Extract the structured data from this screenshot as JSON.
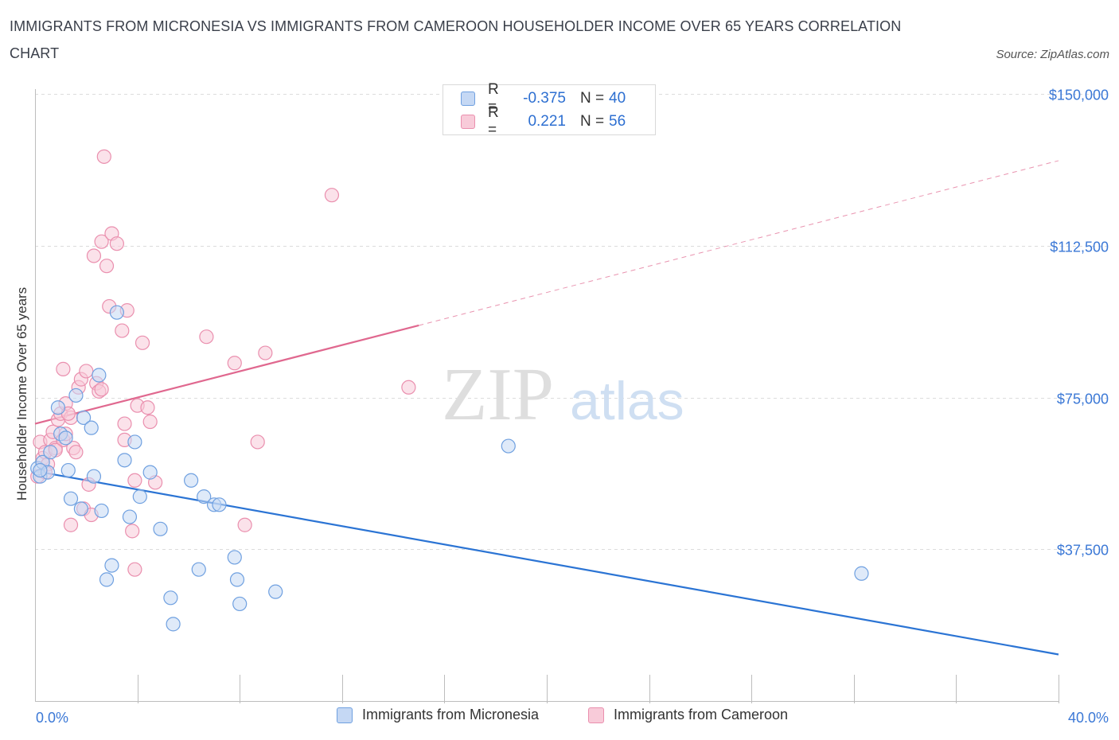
{
  "header": {
    "title": "IMMIGRANTS FROM MICRONESIA VS IMMIGRANTS FROM CAMEROON HOUSEHOLDER INCOME OVER 65 YEARS CORRELATION CHART",
    "source": "Source: ZipAtlas.com"
  },
  "watermark": {
    "zip": "ZIP",
    "atlas": "atlas"
  },
  "legend": {
    "rows": [
      {
        "r_label": "R =",
        "r_value": "-0.375",
        "n_label": "N =",
        "n_value": "40"
      },
      {
        "r_label": "R =",
        "r_value": "0.221",
        "n_label": "N =",
        "n_value": "56"
      }
    ]
  },
  "bottom_legend": [
    {
      "label": "Immigrants from Micronesia"
    },
    {
      "label": "Immigrants from Cameroon"
    }
  ],
  "colors": {
    "micronesia_fill": "#c5d8f4",
    "micronesia_stroke": "#6fa0e0",
    "micronesia_line": "#2b74d4",
    "cameroon_fill": "#f8cbd9",
    "cameroon_stroke": "#ea8fae",
    "cameroon_line": "#e0688f",
    "tick_label": "#3b78d6",
    "grid": "#dcdcdc"
  },
  "chart_data": {
    "type": "scatter",
    "title": "IMMIGRANTS FROM MICRONESIA VS IMMIGRANTS FROM CAMEROON HOUSEHOLDER INCOME OVER 65 YEARS CORRELATION CHART",
    "xlabel": "",
    "ylabel": "Householder Income Over 65 years",
    "xlim": [
      0,
      40
    ],
    "ylim": [
      0,
      150000
    ],
    "x_tick_labels": [
      "0.0%",
      "40.0%"
    ],
    "y_ticks": [
      37500,
      75000,
      112500,
      150000
    ],
    "y_tick_labels": [
      "$37,500",
      "$75,000",
      "$112,500",
      "$150,000"
    ],
    "grid": true,
    "legend_position": "top-center",
    "series": [
      {
        "name": "Immigrants from Micronesia",
        "r": -0.375,
        "n": 40,
        "trend": {
          "x": [
            0,
            40
          ],
          "y": [
            56800,
            11500
          ],
          "style": "solid"
        },
        "points": [
          [
            0.1,
            57500
          ],
          [
            0.3,
            59000
          ],
          [
            0.2,
            55500
          ],
          [
            0.5,
            56500
          ],
          [
            0.6,
            61500
          ],
          [
            0.9,
            72500
          ],
          [
            1.0,
            66000
          ],
          [
            1.2,
            65000
          ],
          [
            1.6,
            75500
          ],
          [
            1.9,
            70000
          ],
          [
            2.2,
            67500
          ],
          [
            2.5,
            80500
          ],
          [
            1.3,
            57000
          ],
          [
            2.3,
            55500
          ],
          [
            1.4,
            50000
          ],
          [
            1.8,
            47500
          ],
          [
            2.6,
            47000
          ],
          [
            3.2,
            96000
          ],
          [
            3.5,
            59500
          ],
          [
            3.9,
            64000
          ],
          [
            4.1,
            50500
          ],
          [
            3.7,
            45500
          ],
          [
            4.5,
            56500
          ],
          [
            4.9,
            42500
          ],
          [
            3.0,
            33500
          ],
          [
            2.8,
            30000
          ],
          [
            6.1,
            54500
          ],
          [
            6.6,
            50500
          ],
          [
            7.0,
            48500
          ],
          [
            7.2,
            48500
          ],
          [
            6.4,
            32500
          ],
          [
            5.3,
            25500
          ],
          [
            5.4,
            19000
          ],
          [
            7.8,
            35500
          ],
          [
            7.9,
            30000
          ],
          [
            8.0,
            24000
          ],
          [
            9.4,
            27000
          ],
          [
            18.5,
            63000
          ],
          [
            32.3,
            31500
          ],
          [
            0.2,
            57000
          ]
        ]
      },
      {
        "name": "Immigrants from Cameroon",
        "r": 0.221,
        "n": 56,
        "trend": {
          "x": [
            0,
            15
          ],
          "y": [
            68500,
            92800
          ],
          "style": "solid",
          "extended": {
            "x": [
              15,
              40
            ],
            "y": [
              92800,
              133500
            ],
            "style": "dashed"
          }
        },
        "points": [
          [
            0.1,
            55500
          ],
          [
            0.2,
            64000
          ],
          [
            0.3,
            60000
          ],
          [
            0.4,
            61500
          ],
          [
            0.5,
            58500
          ],
          [
            0.6,
            64500
          ],
          [
            0.7,
            66500
          ],
          [
            0.8,
            62500
          ],
          [
            0.9,
            69500
          ],
          [
            1.0,
            71000
          ],
          [
            1.1,
            64500
          ],
          [
            1.2,
            73500
          ],
          [
            1.4,
            70000
          ],
          [
            1.5,
            62500
          ],
          [
            1.6,
            61500
          ],
          [
            1.7,
            77500
          ],
          [
            1.8,
            79500
          ],
          [
            1.9,
            47500
          ],
          [
            2.0,
            81500
          ],
          [
            2.1,
            53500
          ],
          [
            2.2,
            46000
          ],
          [
            2.4,
            78500
          ],
          [
            2.5,
            76500
          ],
          [
            2.6,
            77000
          ],
          [
            1.1,
            82000
          ],
          [
            1.4,
            43500
          ],
          [
            2.3,
            110000
          ],
          [
            2.6,
            113500
          ],
          [
            2.7,
            134500
          ],
          [
            2.8,
            107500
          ],
          [
            2.9,
            97500
          ],
          [
            3.0,
            115500
          ],
          [
            3.2,
            113000
          ],
          [
            3.4,
            91500
          ],
          [
            3.5,
            64500
          ],
          [
            3.6,
            96500
          ],
          [
            3.8,
            42000
          ],
          [
            3.9,
            54500
          ],
          [
            4.0,
            73000
          ],
          [
            3.9,
            32500
          ],
          [
            4.2,
            88500
          ],
          [
            4.4,
            72500
          ],
          [
            4.5,
            69000
          ],
          [
            4.7,
            54000
          ],
          [
            3.5,
            68500
          ],
          [
            6.7,
            90000
          ],
          [
            7.8,
            83500
          ],
          [
            8.2,
            43500
          ],
          [
            8.7,
            64000
          ],
          [
            9.0,
            86000
          ],
          [
            11.6,
            125000
          ],
          [
            14.6,
            77500
          ],
          [
            0.4,
            56500
          ],
          [
            1.2,
            66000
          ],
          [
            0.8,
            62000
          ],
          [
            1.3,
            71000
          ]
        ]
      }
    ]
  }
}
